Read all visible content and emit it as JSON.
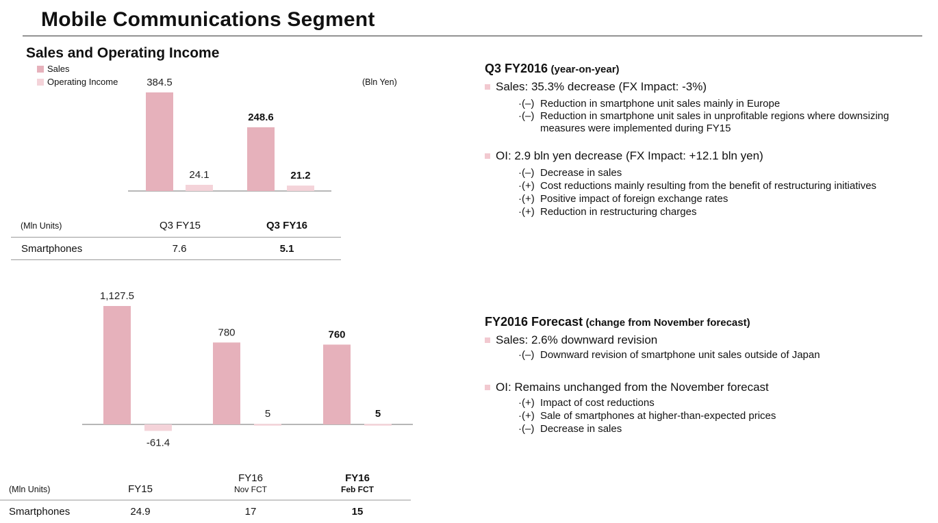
{
  "page_title": "Mobile Communications Segment",
  "section_title": "Sales and Operating Income",
  "colors": {
    "sales": "#e6b1bb",
    "operating_income": "#f4d3d9",
    "bullet": "#f2c9d0",
    "rule": "#333333"
  },
  "legend": {
    "sales": "Sales",
    "operating_income": "Operating Income"
  },
  "chart_data": [
    {
      "type": "bar",
      "unit_label": "(Bln Yen)",
      "categories": [
        "Q3 FY15",
        "Q3 FY16"
      ],
      "series": [
        {
          "name": "Sales",
          "values": [
            384.5,
            248.6
          ],
          "labels": [
            "384.5",
            "248.6"
          ]
        },
        {
          "name": "Operating Income",
          "values": [
            24.1,
            21.2
          ],
          "labels": [
            "24.1",
            "21.2"
          ]
        }
      ],
      "bold_category": "Q3 FY16"
    },
    {
      "type": "bar",
      "categories": [
        "FY15",
        "FY16 Nov FCT",
        "FY16 Feb FCT"
      ],
      "series": [
        {
          "name": "Sales",
          "values": [
            1127.5,
            780,
            760
          ],
          "labels": [
            "1,127.5",
            "780",
            "760"
          ]
        },
        {
          "name": "Operating Income",
          "values": [
            -61.4,
            5,
            5
          ],
          "labels": [
            "-61.4",
            "5",
            "5"
          ]
        }
      ],
      "bold_category": "FY16 Feb FCT"
    }
  ],
  "table1": {
    "unit": "(Mln Units)",
    "col1": "Q3 FY15",
    "col2": "Q3 FY16",
    "row_label": "Smartphones",
    "val1": "7.6",
    "val2": "5.1"
  },
  "table2": {
    "unit": "(Mln Units)",
    "col1": "FY15",
    "col2_line1": "FY16",
    "col2_line2": "Nov FCT",
    "col3_line1": "FY16",
    "col3_line2": "Feb FCT",
    "row_label": "Smartphones",
    "val1": "24.9",
    "val2": "17",
    "val3": "15"
  },
  "right_panel": {
    "q3": {
      "heading": "Q3 FY2016",
      "heading_sub": "(year-on-year)",
      "sales_bullet": "Sales: 35.3% decrease (FX Impact:  -3%)",
      "sales_items": [
        {
          "prefix": "·(–)",
          "text": "Reduction in smartphone unit sales mainly in Europe"
        },
        {
          "prefix": "·(–)",
          "text": "Reduction in smartphone unit sales in unprofitable regions where downsizing measures were implemented during FY15"
        }
      ],
      "oi_bullet": "OI: 2.9 bln yen decrease  (FX Impact:  +12.1 bln yen)",
      "oi_items": [
        {
          "prefix": "·(–)",
          "text": "Decrease in sales"
        },
        {
          "prefix": "·(+)",
          "text": "Cost reductions mainly resulting from the benefit of restructuring initiatives"
        },
        {
          "prefix": "·(+)",
          "text": "Positive impact of foreign exchange rates"
        },
        {
          "prefix": "·(+)",
          "text": "Reduction in restructuring charges"
        }
      ]
    },
    "fy": {
      "heading": "FY2016 Forecast",
      "heading_sub": "(change from November forecast)",
      "sales_bullet": "Sales: 2.6% downward revision",
      "sales_items": [
        {
          "prefix": "·(–)",
          "text": "Downward revision of smartphone unit sales outside of Japan"
        }
      ],
      "oi_bullet": "OI: Remains unchanged from the November forecast",
      "oi_items": [
        {
          "prefix": "·(+)",
          "text": "Impact of cost reductions"
        },
        {
          "prefix": "·(+)",
          "text": "Sale of smartphones at higher-than-expected prices"
        },
        {
          "prefix": "·(–)",
          "text": "Decrease in sales"
        }
      ]
    }
  }
}
